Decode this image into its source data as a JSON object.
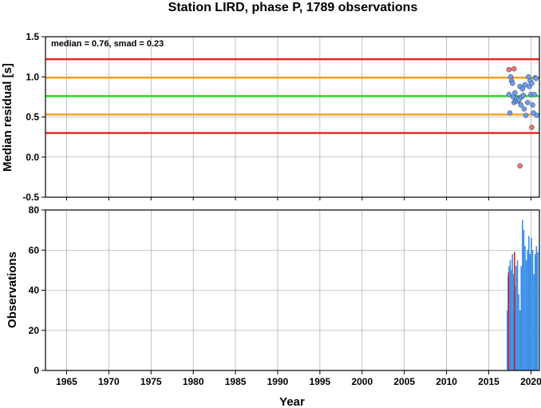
{
  "chart_data": [
    {
      "type": "scatter",
      "title": "Station LIRD, phase P, 1789 observations",
      "ylabel": "Median residual [s]",
      "annotation": "median = 0.76, smad = 0.23",
      "xlim": [
        1962.5,
        2021.0
      ],
      "ylim": [
        -0.5,
        1.5
      ],
      "yticks": [
        "1.5",
        "1.0",
        "0.5",
        "0.0",
        "-0.5"
      ],
      "grid": true,
      "reference_lines": [
        {
          "y": 1.22,
          "color": "#e8221c"
        },
        {
          "y": 0.99,
          "color": "#f0a020"
        },
        {
          "y": 0.76,
          "color": "#22dd22"
        },
        {
          "y": 0.53,
          "color": "#f0a020"
        },
        {
          "y": 0.3,
          "color": "#e8221c"
        }
      ],
      "series": [
        {
          "color": "#6a9ff0",
          "points": [
            [
              2017.4,
              0.78
            ],
            [
              2017.5,
              0.55
            ],
            [
              2017.6,
              1.0
            ],
            [
              2017.7,
              0.95
            ],
            [
              2017.8,
              0.92
            ],
            [
              2017.9,
              0.75
            ],
            [
              2018.0,
              0.68
            ],
            [
              2018.1,
              0.8
            ],
            [
              2018.2,
              0.7
            ],
            [
              2018.3,
              0.73
            ],
            [
              2018.5,
              0.7
            ],
            [
              2018.6,
              0.72
            ],
            [
              2018.7,
              0.88
            ],
            [
              2018.8,
              0.65
            ],
            [
              2018.9,
              0.75
            ],
            [
              2019.0,
              0.85
            ],
            [
              2019.1,
              0.77
            ],
            [
              2019.2,
              0.6
            ],
            [
              2019.3,
              0.9
            ],
            [
              2019.4,
              0.52
            ],
            [
              2019.6,
              0.68
            ],
            [
              2019.7,
              1.0
            ],
            [
              2019.8,
              0.88
            ],
            [
              2019.9,
              0.95
            ],
            [
              2020.0,
              0.78
            ],
            [
              2020.1,
              0.92
            ],
            [
              2020.2,
              0.65
            ],
            [
              2020.3,
              0.55
            ],
            [
              2020.4,
              0.78
            ],
            [
              2020.5,
              0.99
            ],
            [
              2020.6,
              0.98
            ],
            [
              2020.7,
              0.52
            ]
          ]
        },
        {
          "color": "#f07070",
          "points": [
            [
              2017.4,
              1.09
            ],
            [
              2018.0,
              1.1
            ],
            [
              2018.7,
              -0.11
            ],
            [
              2020.1,
              0.37
            ]
          ]
        }
      ]
    },
    {
      "type": "bar",
      "xlabel": "Year",
      "ylabel": "Observations",
      "xlim": [
        1962.5,
        2021.0
      ],
      "ylim": [
        0,
        80
      ],
      "xticks": [
        "1965",
        "1970",
        "1975",
        "1980",
        "1985",
        "1990",
        "1995",
        "2000",
        "2005",
        "2010",
        "2015",
        "2020"
      ],
      "yticks": [
        "0",
        "20",
        "40",
        "60",
        "80"
      ],
      "grid": true,
      "series": [
        {
          "color": "#3a8ee8",
          "x": [
            2017.2,
            2017.3,
            2017.4,
            2017.55,
            2017.65,
            2017.8,
            2017.95,
            2018.1,
            2018.25,
            2018.4,
            2018.55,
            2018.7,
            2018.85,
            2019.0,
            2019.15,
            2019.3,
            2019.45,
            2019.6,
            2019.75,
            2019.9,
            2020.05,
            2020.2,
            2020.35,
            2020.5,
            2020.65,
            2020.8
          ],
          "values": [
            30,
            47,
            52,
            55,
            50,
            58,
            48,
            42,
            52,
            55,
            38,
            30,
            52,
            75,
            70,
            62,
            55,
            60,
            67,
            58,
            66,
            60,
            48,
            58,
            62,
            59
          ]
        },
        {
          "color": "#d02020",
          "x": [
            2017.35,
            2018.05
          ],
          "values": [
            49,
            59
          ]
        }
      ]
    }
  ]
}
